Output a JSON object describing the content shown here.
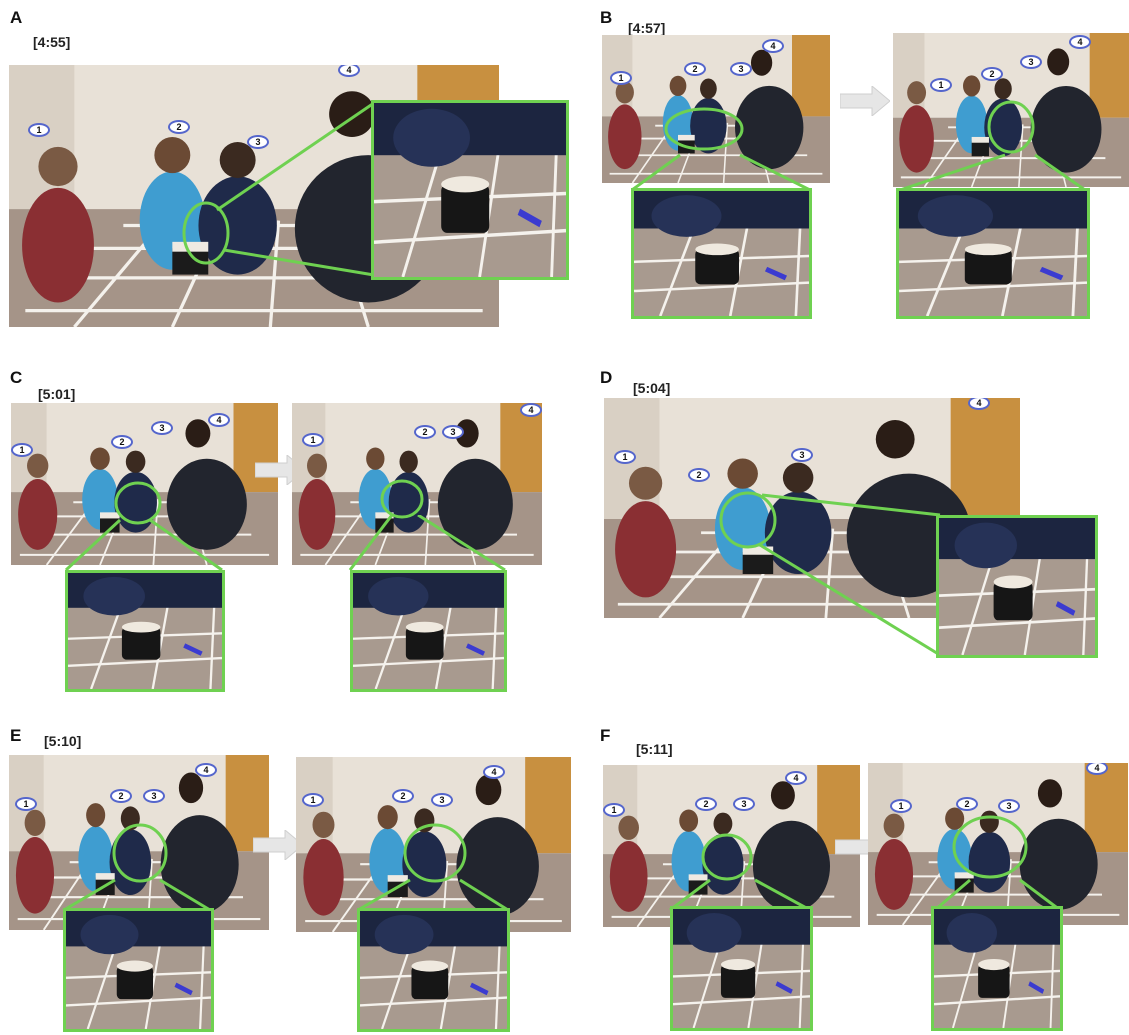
{
  "panels": [
    {
      "letter": "A",
      "time": "[4:55]",
      "labels": [
        "1",
        "2",
        "3",
        "4"
      ]
    },
    {
      "letter": "B",
      "time": "[4:57]",
      "labels": [
        "1",
        "2",
        "3",
        "4"
      ]
    },
    {
      "letter": "C",
      "time": "[5:01]",
      "labels": [
        "1",
        "2",
        "3",
        "4"
      ]
    },
    {
      "letter": "D",
      "time": "[5:04]",
      "labels": [
        "1",
        "2",
        "3",
        "4"
      ]
    },
    {
      "letter": "E",
      "time": "[5:10]",
      "labels": [
        "1",
        "2",
        "3",
        "4"
      ]
    },
    {
      "letter": "F",
      "time": "[5:11]",
      "labels": [
        "1",
        "2",
        "3",
        "4"
      ]
    }
  ],
  "colors": {
    "highlight": "#6fd151",
    "label_border": "#5566cc",
    "arrow": "#e6e6e6"
  }
}
